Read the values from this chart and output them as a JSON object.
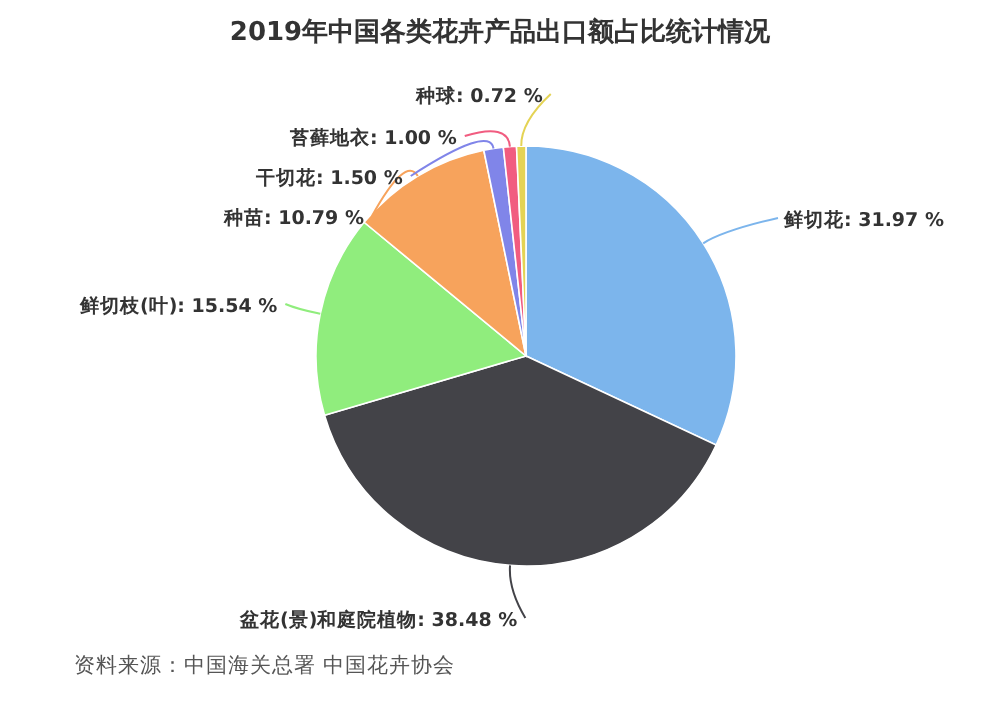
{
  "chart_data": {
    "type": "pie",
    "title": "2019年中国各类花卉产品出口额占比统计情况",
    "categories": [
      "鲜切花",
      "盆花(景)和庭院植物",
      "鲜切枝(叶)",
      "种苗",
      "干切花",
      "苔藓地衣",
      "种球"
    ],
    "values": [
      31.97,
      38.48,
      15.54,
      10.79,
      1.5,
      1.0,
      0.72
    ],
    "colors": [
      "#7cb5ec",
      "#434348",
      "#90ed7d",
      "#f7a35c",
      "#8085e9",
      "#f15c80",
      "#e4d354"
    ],
    "value_labels": [
      "31.97 %",
      "38.48 %",
      "15.54 %",
      "10.79 %",
      "1.50 %",
      "1.00 %",
      "0.72 %"
    ],
    "annotations": [
      "资料来源：中国海关总署 中国花卉协会"
    ]
  }
}
